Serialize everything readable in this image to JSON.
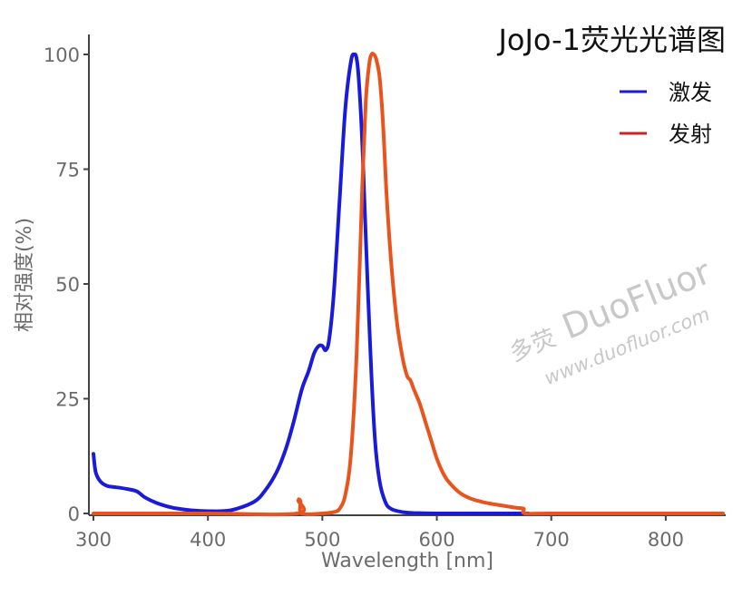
{
  "chart_data": {
    "type": "line",
    "title": "JoJo-1荧光光谱图",
    "xlabel": "Wavelength [nm]",
    "ylabel": "相对强度(%)",
    "xlim": [
      300,
      850
    ],
    "ylim": [
      0,
      105
    ],
    "xticks": [
      300,
      400,
      500,
      600,
      700,
      800
    ],
    "yticks": [
      0,
      25,
      50,
      75,
      100
    ],
    "legend_position": "top-right",
    "grid": false,
    "series": [
      {
        "name": "激发",
        "color": "#1a1adb",
        "x": [
          300,
          302,
          306,
          312,
          320,
          330,
          338,
          345,
          355,
          365,
          375,
          385,
          400,
          420,
          440,
          450,
          460,
          468,
          475,
          482,
          488,
          493,
          497,
          500,
          503,
          506,
          510,
          515,
          520,
          525,
          528,
          530,
          532,
          535,
          538,
          542,
          546,
          550,
          555,
          560,
          570,
          580,
          600,
          620,
          640,
          660,
          680
        ],
        "y": [
          13,
          9,
          7,
          6,
          5.7,
          5.3,
          4.8,
          3.5,
          2.3,
          1.5,
          1.0,
          0.7,
          0.5,
          0.7,
          2.5,
          5,
          9,
          14,
          20,
          27,
          31,
          35,
          36.5,
          36.5,
          35.6,
          38,
          48,
          68,
          88,
          98.5,
          100,
          99,
          94,
          80,
          60,
          35,
          16,
          7,
          2.5,
          1.0,
          0.3,
          0.1,
          0,
          0,
          0,
          0,
          0
        ]
      },
      {
        "name": "发射",
        "color": "#e8541c",
        "x": [
          300,
          400,
          478,
          479,
          480,
          481,
          482,
          500,
          510,
          515,
          520,
          525,
          530,
          535,
          538,
          541,
          543,
          545,
          547,
          550,
          553,
          556,
          560,
          565,
          570,
          574,
          577,
          580,
          585,
          590,
          595,
          600,
          605,
          610,
          620,
          630,
          640,
          650,
          660,
          670,
          676,
          677,
          700,
          800,
          850
        ],
        "y": [
          0,
          0,
          0,
          2.8,
          3.0,
          2.5,
          0,
          0,
          0.3,
          1,
          4,
          13,
          35,
          72,
          90,
          98,
          100,
          100,
          99,
          95,
          85,
          70,
          55,
          42,
          34,
          30,
          29,
          27,
          24,
          20,
          16,
          12,
          9,
          7,
          4.5,
          3.2,
          2.5,
          2,
          1.6,
          1.2,
          1.0,
          0,
          0,
          0,
          0
        ]
      }
    ]
  },
  "watermark": {
    "brand": "DuoFluor",
    "url": "www.duofluor.com",
    "logo_char": "多荧"
  }
}
